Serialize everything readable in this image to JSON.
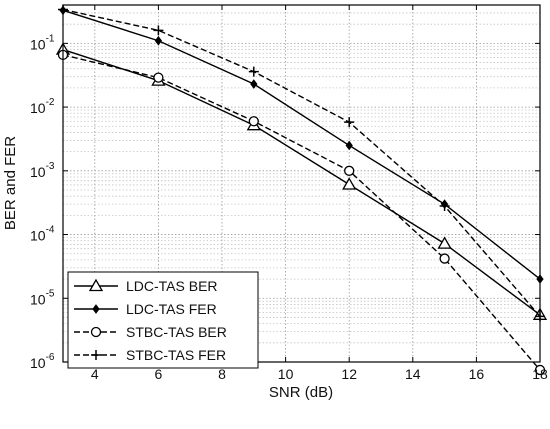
{
  "chart_data": {
    "type": "line",
    "xlabel": "SNR (dB)",
    "ylabel": "BER and FER",
    "xlim": [
      3,
      18
    ],
    "ylim": [
      1e-06,
      0.4
    ],
    "y_scale": "log",
    "grid": true,
    "legend_position": "bottom-left",
    "x_ticks": [
      {
        "value": 4,
        "label": "4"
      },
      {
        "value": 6,
        "label": "6"
      },
      {
        "value": 8,
        "label": "8"
      },
      {
        "value": 10,
        "label": "10"
      },
      {
        "value": 12,
        "label": "12"
      },
      {
        "value": 14,
        "label": "14"
      },
      {
        "value": 16,
        "label": "16"
      },
      {
        "value": 18,
        "label": "18"
      }
    ],
    "y_ticks": [
      {
        "value": 1e-06,
        "base": "10",
        "exp": "-6"
      },
      {
        "value": 1e-05,
        "base": "10",
        "exp": "-5"
      },
      {
        "value": 0.0001,
        "base": "10",
        "exp": "-4"
      },
      {
        "value": 0.001,
        "base": "10",
        "exp": "-3"
      },
      {
        "value": 0.01,
        "base": "10",
        "exp": "-2"
      },
      {
        "value": 0.1,
        "base": "10",
        "exp": "-1"
      }
    ],
    "x": [
      3,
      6,
      9,
      12,
      15,
      18
    ],
    "series": [
      {
        "name": "LDC-TAS BER",
        "style": "solid",
        "marker": "triangle",
        "color": "#000000",
        "values": [
          0.08,
          0.026,
          0.0052,
          0.00061,
          7.2e-05,
          5.5e-06
        ]
      },
      {
        "name": "LDC-TAS FER",
        "style": "solid",
        "marker": "diamond",
        "color": "#000000",
        "values": [
          0.33,
          0.11,
          0.023,
          0.0025,
          0.0003,
          2e-05
        ]
      },
      {
        "name": "STBC-TAS BER",
        "style": "dashed",
        "marker": "circle",
        "color": "#000000",
        "values": [
          0.066,
          0.029,
          0.006,
          0.001,
          4.2e-05,
          7.5e-07
        ]
      },
      {
        "name": "STBC-TAS FER",
        "style": "dashed",
        "marker": "plus",
        "color": "#000000",
        "values": [
          0.34,
          0.16,
          0.036,
          0.0058,
          0.00028,
          5.2e-06
        ]
      }
    ]
  }
}
